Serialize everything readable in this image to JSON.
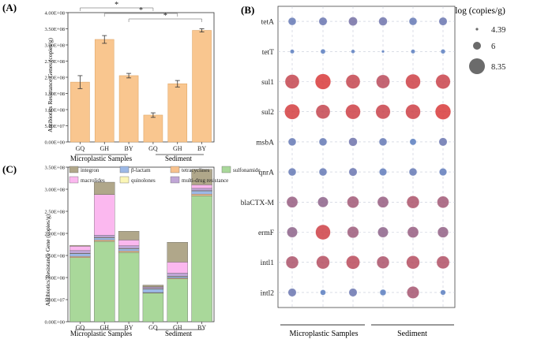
{
  "chart_data": [
    {
      "panel": "(A)",
      "type": "bar",
      "ylabel": "Antibiotics Resistance Genes (copies/g)",
      "ylim": [
        0,
        400000000
      ],
      "yticks": [
        0,
        50000000,
        100000000,
        150000000,
        200000000,
        250000000,
        300000000,
        350000000,
        400000000
      ],
      "ytick_labels": [
        "0.00E+00",
        "5.00E+07",
        "1.00E+08",
        "1.50E+08",
        "2.00E+08",
        "2.50E+08",
        "3.00E+08",
        "3.50E+08",
        "4.00E+08"
      ],
      "categories": [
        "GQ",
        "GH",
        "BY",
        "GQ",
        "GH",
        "BY"
      ],
      "values": [
        185000000,
        317000000,
        205000000,
        83000000,
        180000000,
        345000000
      ],
      "errors": [
        20000000,
        12000000,
        7000000,
        7000000,
        10000000,
        5000000
      ],
      "groups": [
        {
          "label": "Microplastic Samples",
          "indices": [
            0,
            1,
            2
          ]
        },
        {
          "label": "Sediment",
          "indices": [
            3,
            4,
            5
          ]
        }
      ],
      "significance": [
        {
          "from": 0,
          "to": 3,
          "label": "*"
        },
        {
          "from": 1,
          "to": 4,
          "label": "*"
        },
        {
          "from": 2,
          "to": 5,
          "label": "*"
        }
      ],
      "bar_color": "#f9c68f"
    },
    {
      "panel": "(B)",
      "type": "scatter",
      "subtype": "bubble",
      "genes": [
        "tetA",
        "tetT",
        "sul1",
        "sul2",
        "msbA",
        "qnrA",
        "blaCTX-M",
        "ermF",
        "intl1",
        "intl2"
      ],
      "samples": [
        "GQ",
        "GH",
        "BY",
        "GQ",
        "GH",
        "BY"
      ],
      "groups": [
        {
          "label": "Microplastic Samples",
          "indices": [
            0,
            1,
            2
          ]
        },
        {
          "label": "Sediment",
          "indices": [
            3,
            4,
            5
          ]
        }
      ],
      "values": [
        [
          6.0,
          6.1,
          6.3,
          6.2,
          6.0,
          6.1
        ],
        [
          4.9,
          5.1,
          4.8,
          4.5,
          4.9,
          5.0
        ],
        [
          7.9,
          8.3,
          7.9,
          7.7,
          8.1,
          8.0
        ],
        [
          8.2,
          7.9,
          8.1,
          8.0,
          8.1,
          8.3
        ],
        [
          6.0,
          6.0,
          6.2,
          6.0,
          5.6,
          6.1
        ],
        [
          6.0,
          6.0,
          6.1,
          5.9,
          6.0,
          5.9
        ],
        [
          7.0,
          6.8,
          7.2,
          7.0,
          7.4,
          7.2
        ],
        [
          6.8,
          8.1,
          7.1,
          6.8,
          7.0,
          6.9
        ],
        [
          7.4,
          7.6,
          7.7,
          7.4,
          7.6,
          7.5
        ],
        [
          6.1,
          5.3,
          6.1,
          5.5,
          7.3,
          5.2
        ]
      ],
      "legend_title": "log (copies/g)",
      "legend_values": [
        4.39,
        6,
        8.35
      ],
      "legend_labels": [
        "4.39",
        "6",
        "8.35"
      ],
      "low_color": "#5b7ec0",
      "high_color": "#d83a3a"
    },
    {
      "panel": "(C)",
      "type": "bar",
      "subtype": "stacked",
      "ylabel": "Antibiotics Resistance Gene (copies/g)",
      "ylim": [
        0,
        350000000
      ],
      "yticks": [
        0,
        50000000,
        100000000,
        150000000,
        200000000,
        250000000,
        300000000,
        350000000
      ],
      "ytick_labels": [
        "0.00E+00",
        "5.00E+07",
        "1.00E+08",
        "1.50E+08",
        "2.00E+08",
        "2.50E+08",
        "3.00E+08",
        "3.50E+08"
      ],
      "categories": [
        "GQ",
        "GH",
        "BY",
        "GQ",
        "GH",
        "BY"
      ],
      "groups": [
        {
          "label": "Microplastic Samples",
          "indices": [
            0,
            1,
            2
          ]
        },
        {
          "label": "Sediment",
          "indices": [
            3,
            4,
            5
          ]
        }
      ],
      "series": [
        {
          "name": "sulfonamide",
          "color": "#a9d89a",
          "values": [
            145000000,
            182000000,
            157000000,
            65000000,
            97000000,
            285000000
          ]
        },
        {
          "name": "tetracyclines",
          "color": "#f7c28e",
          "values": [
            3000000,
            3000000,
            3000000,
            1000000,
            2000000,
            4000000
          ]
        },
        {
          "name": "β-lactam",
          "color": "#9db9e6",
          "values": [
            6000000,
            5000000,
            5000000,
            8000000,
            3000000,
            7000000
          ]
        },
        {
          "name": "quinolones",
          "color": "#fbf6b6",
          "values": [
            1000000,
            1000000,
            1000000,
            1000000,
            1000000,
            1000000
          ]
        },
        {
          "name": "multi-drug resistance",
          "color": "#c0a6d6",
          "values": [
            6000000,
            5000000,
            6000000,
            3000000,
            7000000,
            5000000
          ]
        },
        {
          "name": "macrolides",
          "color": "#fbb8ef",
          "values": [
            10000000,
            92000000,
            13000000,
            1000000,
            25000000,
            8000000
          ]
        },
        {
          "name": "integron",
          "color": "#b0a78a",
          "values": [
            2000000,
            28000000,
            20000000,
            4000000,
            45000000,
            35000000
          ]
        }
      ],
      "legend_order": [
        "integron",
        "β-lactam",
        "tetracyclines",
        "sulfonamide",
        "macrolides",
        "quinolones",
        "multi-drug resistance"
      ]
    }
  ]
}
